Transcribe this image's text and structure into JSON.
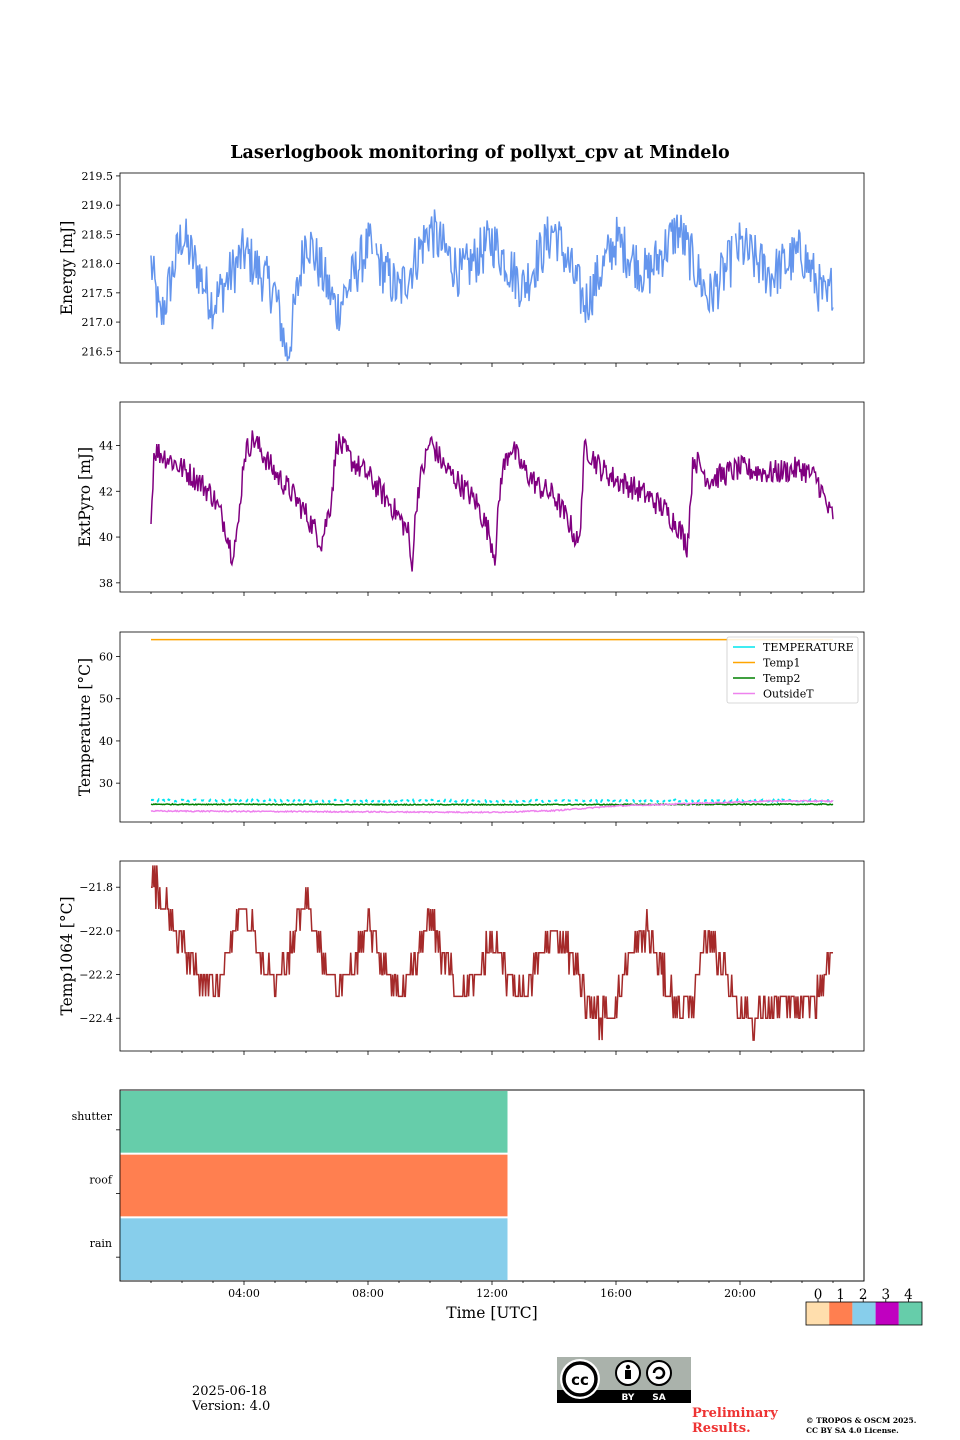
{
  "title": "Laserlogbook monitoring of pollyxt_cpv at Mindelo",
  "chart_data": [
    {
      "type": "line",
      "ylabel": "Energy [mJ]",
      "ylim": [
        216.3,
        219.55
      ],
      "yticks": [
        216.5,
        217.0,
        217.5,
        218.0,
        218.5,
        219.0,
        219.5
      ],
      "yticklabels": [
        "216.5",
        "217.0",
        "217.5",
        "218.0",
        "218.5",
        "219.0",
        "219.5"
      ],
      "series": [
        {
          "color": "#6495ED",
          "mean": 218.2,
          "amp": 0.5,
          "noise": 0.45,
          "keypoints": [
            [
              1.0,
              218.0
            ],
            [
              1.3,
              217.0
            ],
            [
              2.0,
              218.5
            ],
            [
              3.0,
              217.3
            ],
            [
              4.0,
              218.2
            ],
            [
              5.0,
              217.5
            ],
            [
              5.4,
              216.4
            ],
            [
              6.0,
              218.5
            ],
            [
              7.0,
              217.2
            ],
            [
              8.0,
              218.3
            ],
            [
              9.0,
              217.5
            ],
            [
              10.0,
              218.6
            ],
            [
              11.0,
              217.8
            ],
            [
              12.0,
              218.4
            ],
            [
              13.0,
              217.6
            ],
            [
              14.0,
              218.6
            ],
            [
              15.0,
              217.3
            ],
            [
              16.0,
              218.4
            ],
            [
              17.0,
              217.8
            ],
            [
              18.0,
              218.6
            ],
            [
              19.0,
              217.4
            ],
            [
              20.0,
              218.3
            ],
            [
              21.0,
              217.8
            ],
            [
              22.0,
              218.2
            ],
            [
              22.8,
              217.3
            ],
            [
              23.0,
              217.7
            ]
          ]
        }
      ]
    },
    {
      "type": "line",
      "ylabel": "ExtPyro [mJ]",
      "ylim": [
        37.6,
        45.9
      ],
      "yticks": [
        38,
        40,
        42,
        44
      ],
      "yticklabels": [
        "38",
        "40",
        "42",
        "44"
      ],
      "series": [
        {
          "color": "#800080",
          "noise": 0.55,
          "keypoints": [
            [
              1.0,
              40.6
            ],
            [
              1.1,
              43.8
            ],
            [
              1.5,
              43.5
            ],
            [
              2.5,
              42.5
            ],
            [
              3.0,
              41.8
            ],
            [
              3.4,
              40.5
            ],
            [
              3.6,
              39.3
            ],
            [
              3.8,
              40.2
            ],
            [
              4.0,
              43.6
            ],
            [
              4.3,
              44.3
            ],
            [
              5.0,
              42.8
            ],
            [
              5.5,
              42.0
            ],
            [
              6.0,
              41.0
            ],
            [
              6.5,
              39.8
            ],
            [
              6.8,
              41.5
            ],
            [
              7.0,
              44.2
            ],
            [
              7.5,
              43.3
            ],
            [
              8.0,
              42.7
            ],
            [
              8.8,
              41.3
            ],
            [
              9.3,
              40.2
            ],
            [
              9.4,
              38.6
            ],
            [
              9.6,
              42.0
            ],
            [
              10.0,
              44.2
            ],
            [
              10.5,
              43.0
            ],
            [
              11.0,
              42.3
            ],
            [
              11.5,
              41.5
            ],
            [
              11.9,
              40.2
            ],
            [
              12.1,
              39.2
            ],
            [
              12.3,
              42.7
            ],
            [
              12.6,
              44.0
            ],
            [
              13.0,
              43.0
            ],
            [
              13.5,
              42.2
            ],
            [
              14.0,
              41.8
            ],
            [
              14.5,
              40.6
            ],
            [
              14.8,
              39.6
            ],
            [
              15.0,
              44.0
            ],
            [
              15.5,
              43.0
            ],
            [
              16.0,
              42.5
            ],
            [
              16.5,
              42.2
            ],
            [
              17.0,
              41.8
            ],
            [
              17.5,
              41.3
            ],
            [
              18.0,
              40.5
            ],
            [
              18.3,
              39.6
            ],
            [
              18.5,
              43.5
            ],
            [
              19.0,
              42.5
            ],
            [
              20.0,
              43.0
            ],
            [
              21.0,
              42.8
            ],
            [
              22.0,
              43.0
            ],
            [
              22.5,
              42.5
            ],
            [
              22.9,
              41.0
            ],
            [
              23.0,
              41.0
            ]
          ]
        }
      ]
    },
    {
      "type": "line",
      "ylabel": "Temperature [°C]",
      "ylim": [
        20.8,
        65.8
      ],
      "yticks": [
        30,
        40,
        50,
        60
      ],
      "yticklabels": [
        "30",
        "40",
        "50",
        "60"
      ],
      "legend": {
        "position": "upper right"
      },
      "series": [
        {
          "name": "TEMPERATURE",
          "color": "#00E5EE",
          "dashed": true,
          "noise": 0.25,
          "keypoints": [
            [
              1.0,
              25.9
            ],
            [
              12.0,
              25.8
            ],
            [
              23.0,
              25.9
            ]
          ]
        },
        {
          "name": "Temp1",
          "color": "#FFA500",
          "noise": 0.0,
          "keypoints": [
            [
              1.0,
              64.0
            ],
            [
              23.0,
              64.0
            ]
          ]
        },
        {
          "name": "Temp2",
          "color": "#008000",
          "noise": 0.12,
          "keypoints": [
            [
              1.0,
              25.0
            ],
            [
              12.0,
              24.9
            ],
            [
              23.0,
              25.0
            ]
          ]
        },
        {
          "name": "OutsideT",
          "color": "#EE82EE",
          "noise": 0.15,
          "keypoints": [
            [
              1.0,
              23.4
            ],
            [
              12.0,
              23.1
            ],
            [
              14.0,
              23.5
            ],
            [
              16.0,
              24.6
            ],
            [
              19.0,
              25.3
            ],
            [
              21.0,
              25.8
            ],
            [
              23.0,
              25.7
            ]
          ]
        }
      ]
    },
    {
      "type": "line",
      "ylabel": "Temp1064 [°C]",
      "ylim": [
        -22.55,
        -21.68
      ],
      "yticks": [
        -22.4,
        -22.2,
        -22.0,
        -21.8
      ],
      "yticklabels": [
        "−22.4",
        "−22.2",
        "−22.0",
        "−21.8"
      ],
      "step": 0.1,
      "series": [
        {
          "color": "#A52A2A",
          "noise": 0.07,
          "keypoints": [
            [
              1.0,
              -21.75
            ],
            [
              1.5,
              -21.9
            ],
            [
              2.5,
              -22.2
            ],
            [
              3.0,
              -22.25
            ],
            [
              3.5,
              -22.1
            ],
            [
              4.0,
              -21.85
            ],
            [
              4.5,
              -22.1
            ],
            [
              5.0,
              -22.25
            ],
            [
              5.5,
              -22.1
            ],
            [
              6.0,
              -21.85
            ],
            [
              6.5,
              -22.1
            ],
            [
              7.0,
              -22.25
            ],
            [
              7.5,
              -22.2
            ],
            [
              8.0,
              -21.95
            ],
            [
              8.5,
              -22.15
            ],
            [
              9.0,
              -22.3
            ],
            [
              9.5,
              -22.15
            ],
            [
              10.0,
              -21.95
            ],
            [
              10.5,
              -22.15
            ],
            [
              11.0,
              -22.3
            ],
            [
              11.5,
              -22.2
            ],
            [
              12.0,
              -22.05
            ],
            [
              12.5,
              -22.2
            ],
            [
              13.0,
              -22.3
            ],
            [
              13.5,
              -22.15
            ],
            [
              14.0,
              -22.0
            ],
            [
              14.5,
              -22.1
            ],
            [
              15.0,
              -22.3
            ],
            [
              15.5,
              -22.4
            ],
            [
              16.0,
              -22.35
            ],
            [
              16.5,
              -22.1
            ],
            [
              17.0,
              -22.0
            ],
            [
              17.5,
              -22.2
            ],
            [
              18.0,
              -22.35
            ],
            [
              18.5,
              -22.3
            ],
            [
              19.0,
              -22.0
            ],
            [
              19.5,
              -22.2
            ],
            [
              20.0,
              -22.35
            ],
            [
              20.5,
              -22.4
            ],
            [
              21.0,
              -22.35
            ],
            [
              21.5,
              -22.35
            ],
            [
              22.0,
              -22.35
            ],
            [
              22.5,
              -22.3
            ],
            [
              23.0,
              -22.1
            ]
          ]
        }
      ]
    },
    {
      "type": "bar",
      "categories": [
        "shutter",
        "roof",
        "rain"
      ],
      "xlabel": "Time [UTC]",
      "xlim": [
        0,
        24
      ],
      "xticks": [
        4,
        8,
        12,
        16,
        20
      ],
      "xticklabels": [
        "04:00",
        "08:00",
        "12:00",
        "16:00",
        "20:00"
      ],
      "values": [
        12.5,
        12.5,
        12.5
      ],
      "segments": [
        {
          "category": "shutter",
          "start": 0,
          "end": 12.5,
          "state": 4
        },
        {
          "category": "roof",
          "start": 0,
          "end": 12.5,
          "state": 1
        },
        {
          "category": "rain",
          "start": 0,
          "end": 12.5,
          "state": 2
        }
      ]
    }
  ],
  "x_axis": {
    "xlim": [
      0,
      24
    ],
    "major_ticks": [
      4,
      8,
      12,
      16,
      20
    ],
    "minor_step": 1
  },
  "state_colorbar": {
    "labels": [
      "0",
      "1",
      "2",
      "3",
      "4"
    ],
    "colors": [
      "#FFDEAD",
      "#FF7F50",
      "#87CEEB",
      "#C000C0",
      "#66CDAA"
    ]
  },
  "footer": {
    "date": "2025-06-18",
    "version": "Version: 4.0",
    "preliminary": "Preliminary Results.",
    "copyright_line1": "© TROPOS & OSCM 2025.",
    "copyright_line2": "CC BY SA 4.0 License.",
    "license_badge": {
      "icon": "cc-by-sa-icon",
      "text_by": "BY",
      "text_sa": "SA"
    }
  }
}
